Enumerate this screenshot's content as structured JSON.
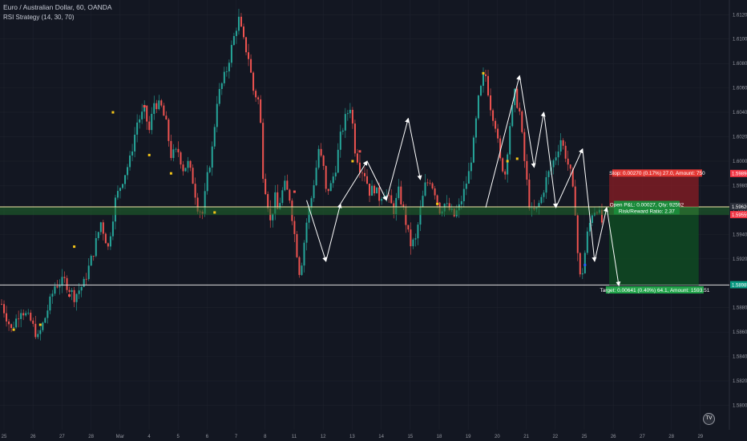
{
  "symbol_title": "Euro / Australian Dollar, 60, OANDA",
  "indicator_label": "RSI Strategy (14, 30, 70)",
  "logo_text": "TV",
  "colors": {
    "background": "#131722",
    "grid": "#1e222d",
    "up": "#26a69a",
    "down": "#ef5350",
    "stop_zone": "#8b1e24",
    "target_zone": "#0f4a22",
    "entry_zone": "#1f6a2c",
    "pattern": "#ffffff",
    "level_line": "#f5e9a8"
  },
  "chart_data": {
    "type": "candlestick",
    "ylim": [
      1.558,
      1.6132
    ],
    "x_ticks": [
      "25",
      "26",
      "27",
      "28",
      "Mar",
      "4",
      "5",
      "6",
      "7",
      "8",
      "11",
      "12",
      "13",
      "14",
      "15",
      "18",
      "19",
      "20",
      "21",
      "22",
      "25",
      "26",
      "27",
      "28",
      "29"
    ],
    "y_ticks": [
      "1.61200",
      "1.61000",
      "1.60800",
      "1.60600",
      "1.60400",
      "1.60200",
      "1.60000",
      "1.59800",
      "1.59600",
      "1.59400",
      "1.59200",
      "1.59000",
      "1.58800",
      "1.58600",
      "1.58400",
      "1.58200",
      "1.58000"
    ],
    "price_labels": [
      {
        "value": 1.59896,
        "text": "1.59896",
        "color": "#f23645"
      },
      {
        "value": 1.59626,
        "text": "1.59626",
        "color": "#2a2e39"
      },
      {
        "value": 1.59559,
        "text": "1.59559",
        "color": "#f23645"
      },
      {
        "value": 1.58985,
        "text": "1.58985",
        "color": "#089981"
      }
    ],
    "path_price": [
      [
        0,
        1.5883
      ],
      [
        4,
        1.5862
      ],
      [
        8,
        1.5879
      ],
      [
        12,
        1.5869
      ],
      [
        15,
        1.5855
      ],
      [
        18,
        1.5872
      ],
      [
        22,
        1.5898
      ],
      [
        26,
        1.5902
      ],
      [
        30,
        1.5889
      ],
      [
        34,
        1.59
      ],
      [
        38,
        1.5926
      ],
      [
        41,
        1.595
      ],
      [
        44,
        1.5929
      ],
      [
        47,
        1.5968
      ],
      [
        50,
        1.5985
      ],
      [
        53,
        1.6001
      ],
      [
        56,
        1.6032
      ],
      [
        59,
        1.6041
      ],
      [
        61,
        1.6025
      ],
      [
        63,
        1.6048
      ],
      [
        66,
        1.6044
      ],
      [
        68,
        1.603
      ],
      [
        70,
        1.6005
      ],
      [
        73,
        1.6008
      ],
      [
        75,
        1.5994
      ],
      [
        77,
        1.5998
      ],
      [
        79,
        1.5984
      ],
      [
        81,
        1.5963
      ],
      [
        83,
        1.5957
      ],
      [
        85,
        1.5987
      ],
      [
        87,
        1.601
      ],
      [
        89,
        1.605
      ],
      [
        91,
        1.6063
      ],
      [
        93,
        1.6075
      ],
      [
        95,
        1.6093
      ],
      [
        97,
        1.611
      ],
      [
        98,
        1.6116
      ],
      [
        100,
        1.6098
      ],
      [
        102,
        1.6085
      ],
      [
        104,
        1.6058
      ],
      [
        106,
        1.605
      ],
      [
        107,
        1.603
      ],
      [
        108,
        1.599
      ],
      [
        110,
        1.5965
      ],
      [
        111,
        1.595
      ],
      [
        113,
        1.597
      ],
      [
        114,
        1.596
      ],
      [
        116,
        1.5975
      ],
      [
        117,
        1.598
      ],
      [
        119,
        1.597
      ],
      [
        121,
        1.594
      ],
      [
        123,
        1.591
      ],
      [
        124,
        1.5918
      ],
      [
        126,
        1.595
      ],
      [
        128,
        1.597
      ],
      [
        130,
        1.5995
      ],
      [
        131,
        1.601
      ],
      [
        133,
        1.5994
      ],
      [
        134,
        1.5975
      ],
      [
        136,
        1.598
      ],
      [
        138,
        1.5995
      ],
      [
        140,
        1.602
      ],
      [
        142,
        1.6035
      ],
      [
        144,
        1.6045
      ],
      [
        145,
        1.603
      ],
      [
        146,
        1.601
      ],
      [
        148,
        1.5995
      ],
      [
        150,
        1.599
      ],
      [
        152,
        1.5975
      ],
      [
        154,
        1.5978
      ],
      [
        156,
        1.597
      ],
      [
        158,
        1.5975
      ],
      [
        160,
        1.5968
      ],
      [
        162,
        1.596
      ],
      [
        164,
        1.5975
      ],
      [
        166,
        1.596
      ],
      [
        168,
        1.594
      ],
      [
        169,
        1.5932
      ],
      [
        171,
        1.5935
      ],
      [
        173,
        1.596
      ],
      [
        175,
        1.598
      ],
      [
        177,
        1.5985
      ],
      [
        179,
        1.5975
      ],
      [
        181,
        1.596
      ],
      [
        183,
        1.5965
      ],
      [
        185,
        1.596
      ],
      [
        187,
        1.5955
      ],
      [
        189,
        1.5962
      ],
      [
        191,
        1.5975
      ],
      [
        193,
        1.599
      ],
      [
        195,
        1.6015
      ],
      [
        197,
        1.605
      ],
      [
        199,
        1.6068
      ],
      [
        200,
        1.607
      ],
      [
        202,
        1.6045
      ],
      [
        204,
        1.603
      ],
      [
        206,
        1.6
      ],
      [
        208,
        1.599
      ],
      [
        210,
        1.603
      ],
      [
        212,
        1.6055
      ],
      [
        214,
        1.604
      ],
      [
        216,
        1.6
      ],
      [
        218,
        1.5965
      ],
      [
        219,
        1.5958
      ],
      [
        221,
        1.596
      ],
      [
        223,
        1.597
      ],
      [
        225,
        1.5985
      ],
      [
        227,
        1.5995
      ],
      [
        229,
        1.6005
      ],
      [
        231,
        1.6018
      ],
      [
        233,
        1.6005
      ],
      [
        235,
        1.599
      ],
      [
        237,
        1.596
      ],
      [
        238,
        1.5925
      ],
      [
        239,
        1.5905
      ],
      [
        240,
        1.591
      ],
      [
        242,
        1.594
      ],
      [
        244,
        1.5958
      ],
      [
        246,
        1.5962
      ],
      [
        248,
        1.595
      ]
    ],
    "signals": [
      {
        "i": 5,
        "value": 1.5862,
        "color": "#f5c518"
      },
      {
        "i": 16,
        "value": 1.5866,
        "color": "#f5c518"
      },
      {
        "i": 28,
        "value": 1.589,
        "color": "#ef5350"
      },
      {
        "i": 30,
        "value": 1.593,
        "color": "#f5c518"
      },
      {
        "i": 46,
        "value": 1.604,
        "color": "#f5c518"
      },
      {
        "i": 59,
        "value": 1.6045,
        "color": "#ef5350"
      },
      {
        "i": 61,
        "value": 1.6005,
        "color": "#f5c518"
      },
      {
        "i": 70,
        "value": 1.599,
        "color": "#f5c518"
      },
      {
        "i": 88,
        "value": 1.5958,
        "color": "#f5c518"
      },
      {
        "i": 121,
        "value": 1.5975,
        "color": "#ef5350"
      },
      {
        "i": 145,
        "value": 1.6,
        "color": "#f5c518"
      },
      {
        "i": 148,
        "value": 1.6008,
        "color": "#ef5350"
      },
      {
        "i": 180,
        "value": 1.5965,
        "color": "#f5c518"
      },
      {
        "i": 209,
        "value": 1.6,
        "color": "#f5c518"
      },
      {
        "i": 213,
        "value": 1.6002,
        "color": "#f5c518"
      },
      {
        "i": 199,
        "value": 1.6072,
        "color": "#f5c518"
      },
      {
        "i": 241,
        "value": 1.5915,
        "color": "#2962ff"
      }
    ],
    "pattern_lines": [
      [
        [
          126,
          1.5968
        ],
        [
          134,
          1.5918
        ],
        [
          140,
          1.5965
        ],
        [
          151,
          1.6
        ],
        [
          159,
          1.5968
        ],
        [
          168,
          1.6035
        ],
        [
          173,
          1.5985
        ]
      ],
      [
        [
          200,
          1.5962
        ],
        [
          214,
          1.607
        ],
        [
          220,
          1.5995
        ],
        [
          224,
          1.604
        ],
        [
          229,
          1.5962
        ],
        [
          240,
          1.601
        ],
        [
          245,
          1.5918
        ],
        [
          250,
          1.5962
        ],
        [
          255,
          1.5898
        ]
      ]
    ],
    "position": {
      "stop_text": "Stop: 0.00270 (0.17%) 27.0, Amount: 750",
      "open_text": "Open P&L: 0.00027, Qty: 92592",
      "rr_text": "Risk/Reward Ratio: 2.37",
      "target_text": "Target: 0.00641 (0.40%) 64.1, Amount: 1593.51",
      "stop": 1.59896,
      "entry_top": 1.59626,
      "entry_bottom": 1.59559,
      "target": 1.58985,
      "start_i": 251,
      "end_i": 288
    },
    "level_line": 1.58985,
    "zone_band": [
      1.59559,
      1.59626
    ]
  }
}
